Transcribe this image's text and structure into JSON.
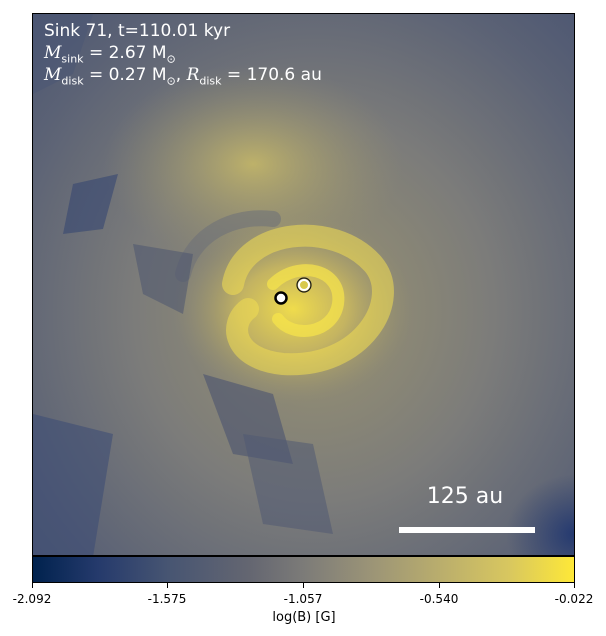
{
  "annotation": {
    "line1": "Sink 71, t=110.01 kyr",
    "msink_symbol": "M",
    "msink_sub": "sink",
    "msink_value": " = 2.67 M",
    "msink_unit_sub": "⊙",
    "mdisk_symbol": "M",
    "mdisk_sub": "disk",
    "mdisk_value": " = 0.27 M",
    "mdisk_unit_sub": "⊙",
    "mdisk_sep": ", ",
    "rdisk_symbol": "R",
    "rdisk_sub": "disk",
    "rdisk_value": " = 170.6 au"
  },
  "scale_bar": {
    "label": "125 au"
  },
  "colorbar": {
    "label": "log(B) [G]",
    "ticks": [
      "-2.092",
      "-1.575",
      "-1.057",
      "-0.540",
      "-0.022"
    ],
    "colors": [
      "#00224e",
      "#475572",
      "#7c7b78",
      "#b9ad6d",
      "#fee838"
    ]
  },
  "sinks": [
    {
      "name": "primary-sink"
    },
    {
      "name": "secondary-sink"
    }
  ]
}
